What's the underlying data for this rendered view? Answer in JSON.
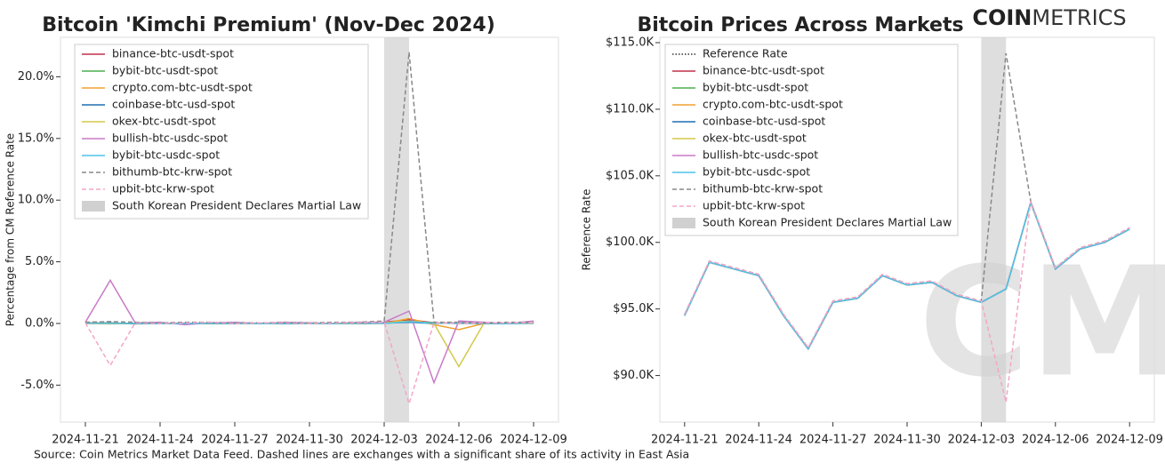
{
  "logo": {
    "bold": "COIN",
    "light": "METRICS"
  },
  "watermark": "CM",
  "source": "Source: Coin Metrics Market Data Feed. Dashed lines are exchanges with a significant share of its activity in East Asia",
  "chart_data": [
    {
      "type": "line",
      "title": "Bitcoin 'Kimchi Premium' (Nov-Dec 2024)",
      "y_label": "Percentage from CM Reference Rate",
      "legend": "upper left",
      "grid": false,
      "x": [
        "2024-11-21",
        "2024-11-22",
        "2024-11-23",
        "2024-11-24",
        "2024-11-25",
        "2024-11-26",
        "2024-11-27",
        "2024-11-28",
        "2024-11-29",
        "2024-11-30",
        "2024-12-01",
        "2024-12-02",
        "2024-12-03",
        "2024-12-04",
        "2024-12-05",
        "2024-12-06",
        "2024-12-07",
        "2024-12-08",
        "2024-12-09"
      ],
      "xlim": [
        "2024-11-20",
        "2024-12-10"
      ],
      "xticks": [
        "2024-11-21",
        "2024-11-24",
        "2024-11-27",
        "2024-11-30",
        "2024-12-03",
        "2024-12-06",
        "2024-12-09"
      ],
      "ylim": [
        -8,
        23.2
      ],
      "yticks": [
        {
          "value": -5,
          "label": "-5.0%"
        },
        {
          "value": 0,
          "label": "0.0%"
        },
        {
          "value": 5,
          "label": "5.0%"
        },
        {
          "value": 10,
          "label": "10.0%"
        },
        {
          "value": 15,
          "label": "15.0%"
        },
        {
          "value": 20,
          "label": "20.0%"
        }
      ],
      "span": {
        "name": "South Korean President Declares Martial Law",
        "x": [
          "2024-12-03",
          "2024-12-04"
        ],
        "color": "#d0d0d0"
      },
      "series": [
        {
          "name": "binance-btc-usdt-spot",
          "color": "#c0304a",
          "dash": "solid",
          "values": [
            0.05,
            0.0,
            -0.02,
            0.01,
            0.03,
            0.0,
            -0.01,
            0.02,
            0.0,
            0.01,
            -0.02,
            0.0,
            0.1,
            0.3,
            0.05,
            0.02,
            0.0,
            0.01,
            0.03
          ]
        },
        {
          "name": "bybit-btc-usdt-spot",
          "color": "#4caf50",
          "dash": "solid",
          "values": [
            0.04,
            0.02,
            -0.01,
            0.0,
            0.02,
            0.01,
            -0.02,
            0.01,
            0.0,
            0.02,
            -0.01,
            0.01,
            0.05,
            0.2,
            0.04,
            0.0,
            0.01,
            0.0,
            0.02
          ]
        },
        {
          "name": "crypto.com-btc-usdt-spot",
          "color": "#f0a030",
          "dash": "solid",
          "values": [
            0.0,
            -0.03,
            0.02,
            -0.02,
            0.0,
            0.03,
            -0.01,
            0.0,
            0.02,
            -0.01,
            0.0,
            -0.02,
            0.0,
            0.4,
            -0.1,
            -0.5,
            0.0,
            0.02,
            0.0
          ]
        },
        {
          "name": "coinbase-btc-usd-spot",
          "color": "#1f6fb4",
          "dash": "solid",
          "values": [
            0.02,
            0.05,
            -0.03,
            0.0,
            0.01,
            -0.02,
            0.0,
            0.03,
            -0.01,
            0.0,
            0.02,
            -0.01,
            0.03,
            0.1,
            0.0,
            0.05,
            -0.02,
            0.0,
            0.01
          ]
        },
        {
          "name": "okex-btc-usdt-spot",
          "color": "#d4c94a",
          "dash": "solid",
          "values": [
            0.03,
            0.01,
            0.0,
            0.02,
            -0.01,
            0.0,
            0.01,
            0.0,
            0.02,
            0.0,
            0.01,
            0.0,
            0.05,
            0.2,
            0.0,
            -3.5,
            0.0,
            0.01,
            0.0
          ]
        },
        {
          "name": "bullish-btc-usdc-spot",
          "color": "#c97ac9",
          "dash": "solid",
          "values": [
            0.1,
            3.5,
            0.05,
            0.1,
            -0.1,
            0.05,
            0.1,
            0.0,
            0.1,
            0.05,
            0.0,
            0.1,
            0.1,
            1.0,
            -4.8,
            0.2,
            0.1,
            0.0,
            0.2
          ]
        },
        {
          "name": "bybit-btc-usdc-spot",
          "color": "#4fc3e8",
          "dash": "solid",
          "values": [
            0.02,
            0.0,
            0.01,
            -0.01,
            0.0,
            0.02,
            0.0,
            -0.01,
            0.01,
            0.0,
            0.0,
            0.01,
            0.0,
            0.15,
            0.02,
            0.0,
            0.01,
            0.0,
            0.01
          ]
        },
        {
          "name": "bithumb-btc-krw-spot",
          "color": "#888888",
          "dash": "dashed",
          "values": [
            0.1,
            0.15,
            0.1,
            0.05,
            0.1,
            0.1,
            0.05,
            0.05,
            0.1,
            0.05,
            0.1,
            0.1,
            0.2,
            22,
            0.1,
            0.1,
            0.05,
            0.1,
            0.1
          ]
        },
        {
          "name": "upbit-btc-krw-spot",
          "color": "#f4a6c8",
          "dash": "dashed",
          "values": [
            0.05,
            -3.4,
            0.05,
            0.0,
            0.05,
            0.1,
            0.0,
            0.05,
            0.05,
            0.0,
            0.05,
            0.05,
            0.1,
            -6.5,
            0.05,
            0.0,
            0.05,
            0.05,
            0.05
          ]
        }
      ]
    },
    {
      "type": "line",
      "title": "Bitcoin Prices Across Markets",
      "y_label": "Reference Rate",
      "legend": "upper left",
      "grid": false,
      "x": [
        "2024-11-21",
        "2024-11-22",
        "2024-11-23",
        "2024-11-24",
        "2024-11-25",
        "2024-11-26",
        "2024-11-27",
        "2024-11-28",
        "2024-11-29",
        "2024-11-30",
        "2024-12-01",
        "2024-12-02",
        "2024-12-03",
        "2024-12-04",
        "2024-12-05",
        "2024-12-06",
        "2024-12-07",
        "2024-12-08",
        "2024-12-09"
      ],
      "xlim": [
        "2024-11-20",
        "2024-12-10"
      ],
      "xticks": [
        "2024-11-21",
        "2024-11-24",
        "2024-11-27",
        "2024-11-30",
        "2024-12-03",
        "2024-12-06",
        "2024-12-09"
      ],
      "ylim": [
        86.5,
        115.4
      ],
      "yticks": [
        {
          "value": 90,
          "label": "$90.0K"
        },
        {
          "value": 95,
          "label": "$95.0K"
        },
        {
          "value": 100,
          "label": "$100.0K"
        },
        {
          "value": 105,
          "label": "$105.0K"
        },
        {
          "value": 110,
          "label": "$110.0K"
        },
        {
          "value": 115,
          "label": "$115.0K"
        }
      ],
      "span": {
        "name": "South Korean President Declares Martial Law",
        "x": [
          "2024-12-03",
          "2024-12-04"
        ],
        "color": "#d0d0d0"
      },
      "series": [
        {
          "name": "Reference Rate",
          "color": "#333333",
          "dash": "dotted",
          "values": [
            94.5,
            98.5,
            98.0,
            97.5,
            94.5,
            92.0,
            95.5,
            95.8,
            97.5,
            96.8,
            97.0,
            96.0,
            95.5,
            96.5,
            103.0,
            98.0,
            99.5,
            100.0,
            101.0
          ]
        },
        {
          "name": "binance-btc-usdt-spot",
          "color": "#c0304a",
          "dash": "solid",
          "values": [
            94.5,
            98.5,
            98.0,
            97.5,
            94.5,
            92.0,
            95.5,
            95.8,
            97.5,
            96.8,
            97.0,
            96.0,
            95.5,
            96.5,
            103.0,
            98.0,
            99.5,
            100.0,
            101.0
          ]
        },
        {
          "name": "bybit-btc-usdt-spot",
          "color": "#4caf50",
          "dash": "solid",
          "values": [
            94.5,
            98.5,
            98.0,
            97.5,
            94.5,
            92.0,
            95.5,
            95.8,
            97.5,
            96.8,
            97.0,
            96.0,
            95.5,
            96.5,
            103.0,
            98.0,
            99.5,
            100.0,
            101.0
          ]
        },
        {
          "name": "crypto.com-btc-usdt-spot",
          "color": "#f0a030",
          "dash": "solid",
          "values": [
            94.5,
            98.5,
            98.0,
            97.5,
            94.5,
            92.0,
            95.5,
            95.8,
            97.5,
            96.8,
            97.0,
            96.0,
            95.5,
            96.5,
            103.0,
            98.0,
            99.5,
            100.0,
            101.0
          ]
        },
        {
          "name": "coinbase-btc-usd-spot",
          "color": "#1f6fb4",
          "dash": "solid",
          "values": [
            94.5,
            98.5,
            98.0,
            97.5,
            94.5,
            92.0,
            95.5,
            95.8,
            97.5,
            96.8,
            97.0,
            96.0,
            95.5,
            96.5,
            103.0,
            98.0,
            99.5,
            100.0,
            101.0
          ]
        },
        {
          "name": "okex-btc-usdt-spot",
          "color": "#d4c94a",
          "dash": "solid",
          "values": [
            94.5,
            98.5,
            98.0,
            97.5,
            94.5,
            92.0,
            95.5,
            95.8,
            97.5,
            96.8,
            97.0,
            96.0,
            95.5,
            96.5,
            103.0,
            98.0,
            99.5,
            100.0,
            101.0
          ]
        },
        {
          "name": "bullish-btc-usdc-spot",
          "color": "#c97ac9",
          "dash": "solid",
          "values": [
            94.5,
            98.5,
            98.0,
            97.5,
            94.5,
            92.0,
            95.5,
            95.8,
            97.5,
            96.8,
            97.0,
            96.0,
            95.5,
            96.5,
            103.0,
            98.0,
            99.5,
            100.0,
            101.0
          ]
        },
        {
          "name": "bybit-btc-usdc-spot",
          "color": "#4fc3e8",
          "dash": "solid",
          "values": [
            94.5,
            98.5,
            98.0,
            97.5,
            94.5,
            92.0,
            95.5,
            95.8,
            97.5,
            96.8,
            97.0,
            96.0,
            95.5,
            96.5,
            103.0,
            98.0,
            99.5,
            100.0,
            101.0
          ]
        },
        {
          "name": "bithumb-btc-krw-spot",
          "color": "#888888",
          "dash": "dashed",
          "values": [
            94.6,
            98.6,
            98.1,
            97.6,
            94.6,
            92.1,
            95.6,
            95.9,
            97.6,
            96.9,
            97.1,
            96.1,
            95.6,
            114.2,
            103.1,
            98.1,
            99.6,
            100.1,
            101.1
          ]
        },
        {
          "name": "upbit-btc-krw-spot",
          "color": "#f4a6c8",
          "dash": "dashed",
          "values": [
            94.6,
            98.6,
            98.1,
            97.6,
            94.6,
            92.1,
            95.6,
            95.9,
            97.6,
            96.9,
            97.1,
            96.1,
            95.6,
            88.0,
            103.1,
            98.1,
            99.6,
            100.1,
            101.1
          ]
        }
      ]
    }
  ]
}
